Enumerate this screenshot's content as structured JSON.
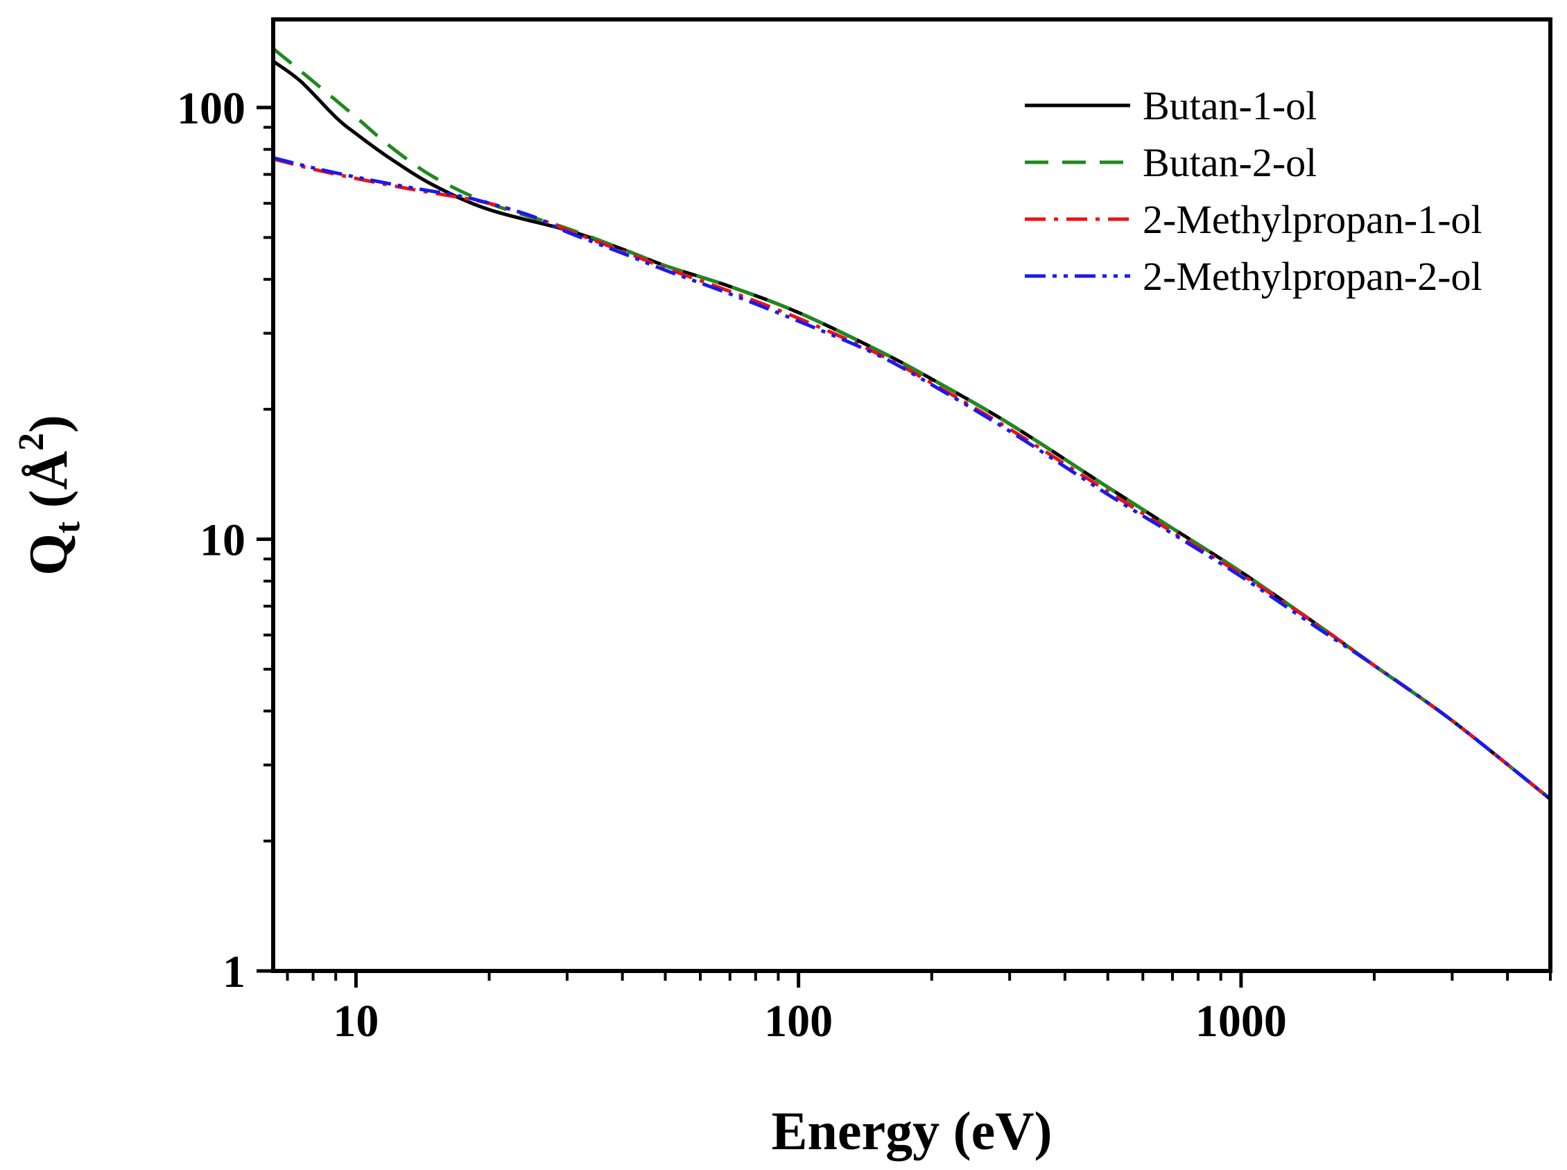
{
  "chart_data": {
    "type": "line",
    "xlabel": "Energy (eV)",
    "ylabel": {
      "main": "Q",
      "sub": "t",
      "unit_open": " (Å",
      "sup": "2",
      "unit_close": ")"
    },
    "xscale": "log",
    "yscale": "log",
    "xlim": [
      6.5,
      5000
    ],
    "ylim": [
      1,
      160
    ],
    "xticks": [
      10,
      100,
      1000
    ],
    "xtick_labels": [
      "10",
      "100",
      "1000"
    ],
    "yticks": [
      1,
      10,
      100
    ],
    "ytick_labels": [
      "1",
      "10",
      "100"
    ],
    "grid": false,
    "legend_position": "top-right",
    "series": [
      {
        "name": "Butan-1-ol",
        "color": "#000000",
        "dash": "solid",
        "x": [
          6.5,
          7.5,
          9,
          10,
          12,
          15,
          20,
          30,
          40,
          50,
          70,
          100,
          150,
          200,
          300,
          500,
          700,
          1000,
          1500,
          2000,
          3000,
          5000
        ],
        "y": [
          128,
          115,
          95,
          87,
          76,
          66,
          58,
          52,
          47,
          43,
          38.5,
          33.5,
          27.5,
          23.5,
          18.5,
          13.2,
          10.6,
          8.4,
          6.3,
          5.1,
          3.8,
          2.5
        ]
      },
      {
        "name": "Butan-2-ol",
        "color": "#1e8a1e",
        "dash": "dashed",
        "x": [
          6.5,
          8,
          10,
          12,
          15,
          20,
          30,
          40,
          50,
          70,
          100,
          150,
          200,
          300,
          500,
          700,
          1000,
          1500,
          2000,
          3000,
          5000
        ],
        "y": [
          137,
          115,
          95,
          81,
          69,
          60,
          52.5,
          47,
          43,
          38.5,
          33.5,
          27.5,
          23.5,
          18.5,
          13.2,
          10.6,
          8.4,
          6.3,
          5.1,
          3.8,
          2.5
        ]
      },
      {
        "name": "2-Methylpropan-1-ol",
        "color": "#ee1111",
        "dash": "dash-dot",
        "x": [
          6.5,
          8,
          10,
          13,
          17,
          20,
          25,
          30,
          40,
          50,
          70,
          100,
          150,
          200,
          300,
          500,
          700,
          1000,
          1500,
          2000,
          3000,
          5000
        ],
        "y": [
          76,
          72,
          68.5,
          65,
          62,
          60,
          56,
          52,
          46.5,
          42.5,
          37.5,
          32.5,
          27,
          23,
          18,
          12.9,
          10.4,
          8.3,
          6.3,
          5.1,
          3.8,
          2.5
        ]
      },
      {
        "name": "2-Methylpropan-2-ol",
        "color": "#1a1aee",
        "dash": "dash-dot-dot",
        "x": [
          6.5,
          8,
          10,
          13,
          17,
          20,
          25,
          30,
          40,
          50,
          70,
          100,
          150,
          200,
          300,
          500,
          700,
          1000,
          1500,
          2000,
          3000,
          5000
        ],
        "y": [
          76.5,
          72.5,
          69,
          65.5,
          62.5,
          60,
          56,
          51.5,
          46,
          42,
          37,
          32,
          26.8,
          22.8,
          17.8,
          12.7,
          10.3,
          8.2,
          6.2,
          5.1,
          3.8,
          2.5
        ]
      }
    ]
  }
}
